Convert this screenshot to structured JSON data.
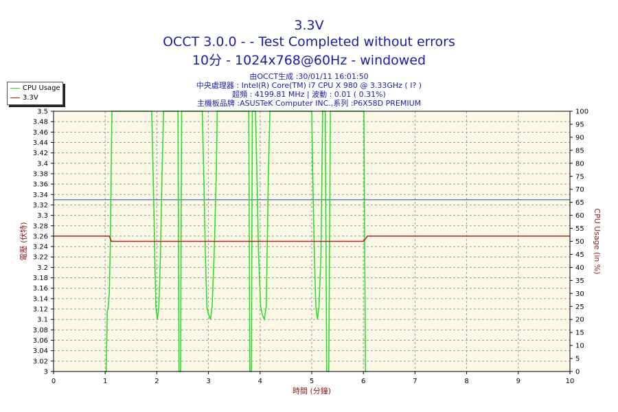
{
  "titles": {
    "line1": "3.3V",
    "line2": "OCCT 3.0.0 -  - Test Completed without errors",
    "line3": "10分 - 1024x768@60Hz - windowed"
  },
  "info": {
    "line1": "由OCCT生成 :30/01/11 16:01:50",
    "line2": "中央處理器 : Intel(R) Core(TM) i7 CPU X 980 @ 3.33GHz (  I? )",
    "line3": "超頻 : 4199.81 MHz | 波動 : 0.01 ( 0.31%)",
    "line4": "主機板品牌 :ASUSTeK Computer INC.,系列 :P6X58D PREMIUM"
  },
  "colors": {
    "plot_bg": "#fbf8e6",
    "grid": "#999999",
    "cpu_usage": "#22dd22",
    "voltage_line": "#b22222",
    "reference_line": "#1f3fa8",
    "axis_label_left": "#8b1a1a",
    "axis_label_right": "#8b1a1a",
    "tick_text": "#000000"
  },
  "chart_data": {
    "type": "line",
    "xlabel": "時間 (分鐘)",
    "ylabel": "電壓 (伏特)",
    "y2label": "CPU Usage (in %)",
    "xlim": [
      0,
      10
    ],
    "ylim": [
      3.0,
      3.5
    ],
    "y2lim": [
      0,
      100
    ],
    "x_ticks": [
      "0",
      "1",
      "2",
      "3",
      "4",
      "5",
      "6",
      "7",
      "8",
      "9",
      "10"
    ],
    "y_ticks": [
      "3",
      "3.02",
      "3.04",
      "3.06",
      "3.08",
      "3.1",
      "3.12",
      "3.14",
      "3.16",
      "3.18",
      "3.2",
      "3.22",
      "3.24",
      "3.26",
      "3.28",
      "3.3",
      "3.32",
      "3.34",
      "3.36",
      "3.38",
      "3.4",
      "3.42",
      "3.44",
      "3.46",
      "3.48",
      "3.5"
    ],
    "y2_ticks": [
      "0",
      "5",
      "10",
      "15",
      "20",
      "25",
      "30",
      "35",
      "40",
      "45",
      "50",
      "55",
      "60",
      "65",
      "70",
      "75",
      "80",
      "85",
      "90",
      "95",
      "100"
    ],
    "grid": true,
    "legend_position": "top-left-outside",
    "reference_line": {
      "y": 3.33
    },
    "series": [
      {
        "name": "CPU Usage",
        "axis": "right",
        "x": [
          1.0,
          1.02,
          1.04,
          1.06,
          1.08,
          1.1,
          1.13,
          1.15,
          1.9,
          1.93,
          1.96,
          1.98,
          2.01,
          2.04,
          2.07,
          2.1,
          2.13,
          2.16,
          2.41,
          2.43,
          2.46,
          2.48,
          2.51,
          2.53,
          2.88,
          2.91,
          2.94,
          2.97,
          3.0,
          3.04,
          3.07,
          3.11,
          3.15,
          3.17,
          3.78,
          3.8,
          3.83,
          3.85,
          3.88,
          3.91,
          3.94,
          3.97,
          4.01,
          4.04,
          4.08,
          4.12,
          4.16,
          4.19,
          5.0,
          5.02,
          5.05,
          5.08,
          5.11,
          5.14,
          5.18,
          5.21,
          5.26,
          5.29,
          5.33,
          5.36,
          5.4,
          5.98,
          6.01,
          6.04,
          6.07
        ],
        "values": [
          0,
          0,
          23,
          25,
          30,
          50,
          100,
          100,
          100,
          75,
          45,
          25,
          20,
          25,
          45,
          75,
          100,
          100,
          100,
          0,
          0,
          100,
          100,
          100,
          100,
          75,
          45,
          25,
          22,
          20,
          25,
          45,
          75,
          100,
          100,
          0,
          0,
          100,
          100,
          100,
          75,
          45,
          25,
          22,
          20,
          25,
          75,
          100,
          100,
          75,
          45,
          25,
          20,
          25,
          45,
          100,
          100,
          0,
          0,
          100,
          100,
          100,
          100,
          0,
          0
        ]
      },
      {
        "name": "3.3V",
        "axis": "left",
        "x": [
          0,
          1.08,
          1.12,
          6.0,
          6.08,
          10
        ],
        "values": [
          3.26,
          3.26,
          3.25,
          3.25,
          3.26,
          3.26
        ]
      }
    ]
  }
}
